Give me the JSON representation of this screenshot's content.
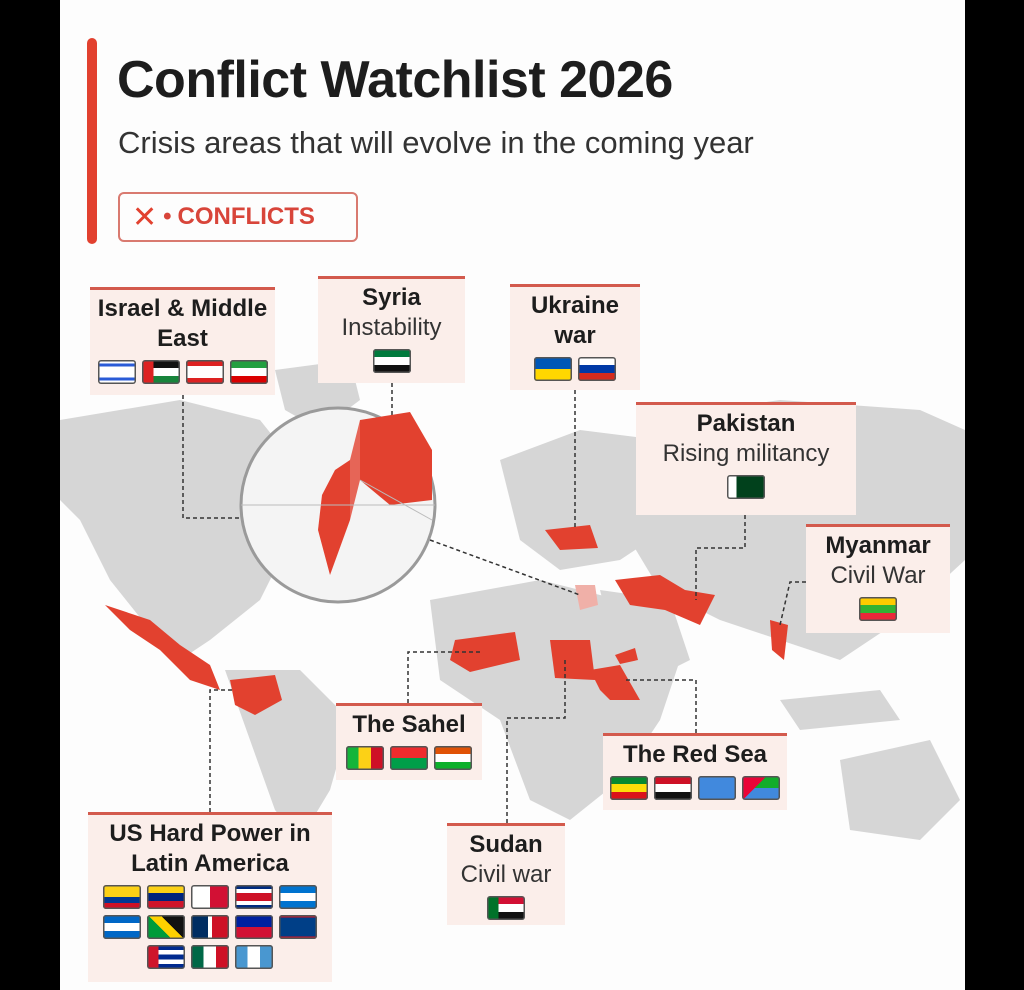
{
  "header": {
    "title": "Conflict Watchlist 2026",
    "subtitle": "Crisis areas that will evolve in the coming year"
  },
  "legend": {
    "icon": "crossed-swords-icon",
    "separator": "•",
    "label": "CONFLICTS"
  },
  "colors": {
    "accent": "#e2412f",
    "land": "#d6d6d6",
    "box_bg": "#fbeeea"
  },
  "regions": [
    {
      "id": "israel",
      "title": "Israel & Middle East",
      "subtitle": "",
      "flags": [
        "israel",
        "palestine",
        "lebanon",
        "iran"
      ]
    },
    {
      "id": "syria",
      "title": "Syria",
      "subtitle": "Instability",
      "flags": [
        "syria"
      ]
    },
    {
      "id": "ukraine",
      "title": "Ukraine war",
      "subtitle": "",
      "flags": [
        "ukraine",
        "russia"
      ]
    },
    {
      "id": "pakistan",
      "title": "Pakistan",
      "subtitle": "Rising militancy",
      "flags": [
        "pakistan"
      ]
    },
    {
      "id": "myanmar",
      "title": "Myanmar",
      "subtitle": "Civil War",
      "flags": [
        "myanmar"
      ]
    },
    {
      "id": "sahel",
      "title": "The Sahel",
      "subtitle": "",
      "flags": [
        "mali",
        "burkina-faso",
        "niger"
      ]
    },
    {
      "id": "redsea",
      "title": "The Red Sea",
      "subtitle": "",
      "flags": [
        "ethiopia",
        "yemen",
        "somalia",
        "eritrea"
      ]
    },
    {
      "id": "sudan",
      "title": "Sudan",
      "subtitle": "Civil war",
      "flags": [
        "sudan"
      ]
    },
    {
      "id": "latam",
      "title": "US Hard Power in Latin America",
      "subtitle": "",
      "flags": [
        "colombia",
        "venezuela",
        "panama",
        "costa-rica",
        "honduras",
        "nicaragua",
        "jamaica",
        "dominican-republic",
        "haiti",
        "belize",
        "cuba",
        "mexico",
        "guatemala"
      ]
    }
  ]
}
